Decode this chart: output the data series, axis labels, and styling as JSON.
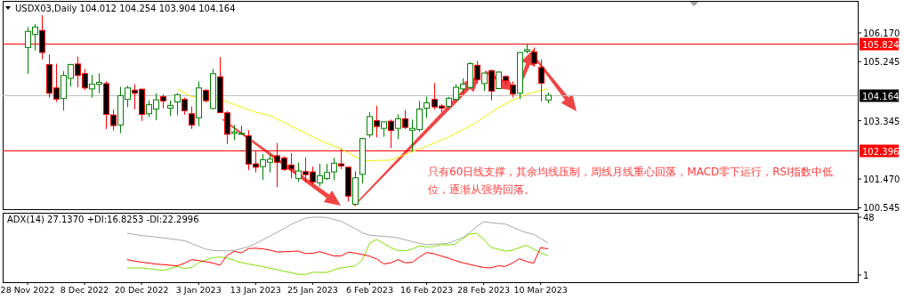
{
  "chart_data": [
    {
      "type": "candlestick",
      "title": "USDX03,Daily 104.012 104.254 103.904 104.164",
      "categories": [
        null,
        null,
        null,
        null,
        null,
        null,
        null,
        null,
        null,
        null,
        null,
        null,
        null,
        null,
        null,
        null,
        null,
        null,
        null,
        null,
        null,
        null,
        null,
        null,
        null,
        null,
        null,
        null,
        null,
        null,
        null,
        null,
        null,
        null,
        null,
        null,
        null,
        null,
        null,
        null,
        null,
        null,
        null,
        null,
        null,
        null,
        null,
        null,
        null,
        null,
        null,
        null,
        null,
        null,
        null,
        null,
        null,
        null,
        null,
        null,
        null,
        null,
        null,
        null,
        null,
        null,
        null,
        null,
        null,
        null,
        null,
        null,
        null,
        null,
        null,
        null,
        null,
        null,
        null,
        null,
        null,
        null,
        null,
        null,
        null,
        null,
        null,
        null,
        null,
        null,
        null,
        null,
        null,
        null,
        null,
        null,
        null,
        null,
        null,
        null,
        null,
        null,
        null,
        null,
        null,
        null,
        null,
        null,
        null,
        null,
        null,
        null,
        null,
        null,
        null,
        null,
        null,
        null,
        null,
        null
      ],
      "ohlc": [
        null,
        null,
        null,
        [
          105.7,
          106.36,
          104.85,
          106.22
        ],
        [
          106.12,
          106.45,
          105.6,
          106.36
        ],
        [
          106.25,
          106.74,
          105.32,
          105.54
        ],
        [
          105.15,
          105.48,
          104.09,
          104.23
        ],
        [
          104.4,
          105.18,
          103.95,
          104.04
        ],
        [
          104.06,
          104.94,
          103.67,
          104.8
        ],
        [
          104.71,
          105.18,
          104.44,
          105.15
        ],
        [
          105.17,
          105.41,
          104.42,
          104.8
        ],
        [
          104.86,
          105.01,
          104.33,
          104.4
        ],
        [
          104.37,
          104.82,
          104.09,
          104.52
        ],
        [
          104.52,
          104.87,
          104.23,
          104.58
        ],
        [
          104.54,
          104.61,
          103.08,
          103.55
        ],
        [
          103.53,
          103.71,
          103.03,
          103.19
        ],
        [
          103.21,
          104.44,
          102.95,
          104.15
        ],
        [
          104.03,
          104.47,
          103.78,
          104.4
        ],
        [
          104.33,
          104.52,
          103.71,
          104.23
        ],
        [
          104.36,
          104.38,
          103.34,
          103.55
        ],
        [
          103.57,
          104.0,
          103.46,
          103.86
        ],
        [
          103.72,
          104.23,
          103.36,
          104.02
        ],
        [
          104.12,
          104.19,
          103.74,
          103.98
        ],
        [
          103.75,
          104.0,
          103.5,
          103.84
        ],
        [
          103.95,
          104.23,
          103.52,
          104.18
        ],
        [
          104.03,
          104.09,
          103.54,
          103.67
        ],
        [
          103.57,
          103.81,
          103.08,
          103.21
        ],
        [
          103.44,
          104.61,
          103.17,
          104.4
        ],
        [
          104.32,
          104.37,
          103.93,
          103.99
        ],
        [
          103.74,
          105.01,
          103.71,
          104.86
        ],
        [
          104.76,
          105.39,
          103.59,
          103.61
        ],
        [
          103.6,
          103.65,
          102.6,
          102.91
        ],
        [
          102.94,
          103.21,
          102.72,
          102.99
        ],
        [
          102.92,
          103.19,
          102.91,
          102.94
        ],
        [
          102.86,
          103.04,
          101.76,
          101.95
        ],
        [
          101.96,
          102.39,
          101.68,
          101.85
        ],
        [
          101.87,
          102.27,
          101.44,
          102.09
        ],
        [
          102.01,
          102.27,
          101.68,
          102.11
        ],
        [
          102.22,
          102.63,
          101.21,
          102.01
        ],
        [
          102.15,
          102.2,
          101.73,
          101.78
        ],
        [
          101.92,
          102.3,
          101.49,
          101.79
        ],
        [
          101.49,
          102.0,
          101.38,
          101.73
        ],
        [
          101.71,
          102.17,
          101.35,
          101.61
        ],
        [
          101.7,
          101.87,
          101.3,
          101.37
        ],
        [
          101.35,
          101.96,
          101.23,
          101.58
        ],
        [
          101.49,
          101.96,
          101.44,
          101.68
        ],
        [
          101.7,
          102.15,
          101.43,
          101.98
        ],
        [
          101.96,
          102.44,
          101.79,
          101.89
        ],
        [
          101.85,
          101.87,
          100.75,
          100.92
        ],
        [
          100.66,
          101.72,
          100.62,
          101.51
        ],
        [
          101.62,
          102.8,
          101.33,
          102.77
        ],
        [
          102.89,
          103.62,
          102.8,
          103.48
        ],
        [
          103.35,
          103.83,
          102.81,
          103.16
        ],
        [
          103.1,
          103.33,
          102.83,
          103.31
        ],
        [
          103.33,
          103.38,
          102.47,
          103.03
        ],
        [
          103.1,
          103.55,
          102.75,
          103.41
        ],
        [
          103.41,
          103.69,
          103.08,
          103.13
        ],
        [
          103.04,
          103.38,
          102.36,
          103.1
        ],
        [
          103.06,
          103.98,
          103.0,
          103.72
        ],
        [
          103.75,
          104.12,
          103.43,
          103.92
        ],
        [
          104.03,
          104.56,
          103.71,
          103.79
        ],
        [
          103.82,
          103.88,
          103.62,
          103.75
        ],
        [
          103.81,
          104.11,
          103.76,
          104.07
        ],
        [
          104.03,
          104.52,
          104.0,
          104.42
        ],
        [
          104.37,
          104.71,
          104.23,
          104.52
        ],
        [
          104.42,
          105.23,
          104.38,
          105.18
        ],
        [
          105.13,
          105.27,
          104.54,
          104.66
        ],
        [
          104.54,
          104.89,
          104.3,
          104.88
        ],
        [
          104.96,
          104.99,
          104.0,
          104.3
        ],
        [
          104.38,
          104.94,
          104.36,
          104.91
        ],
        [
          104.77,
          104.8,
          104.47,
          104.63
        ],
        [
          104.49,
          104.61,
          104.09,
          104.2
        ],
        [
          104.23,
          105.56,
          104.04,
          105.54
        ],
        [
          105.58,
          105.82,
          105.51,
          105.63
        ],
        [
          105.56,
          105.7,
          105.08,
          105.18
        ],
        [
          105.06,
          105.32,
          103.97,
          104.55
        ],
        [
          104.012,
          104.254,
          103.904,
          104.164
        ],
        null,
        null,
        null,
        null,
        null,
        null,
        null,
        null,
        null,
        null,
        null,
        null,
        null,
        null,
        null,
        null,
        null,
        null,
        null,
        null,
        null,
        null,
        null,
        null,
        null,
        null,
        null,
        null,
        null,
        null,
        null,
        null,
        null,
        null,
        null,
        null,
        null,
        null,
        null,
        null,
        null,
        null,
        null
      ],
      "series": [
        {
          "type": "line",
          "color": "#f0f000",
          "values": [
            null,
            null,
            null,
            null,
            null,
            null,
            null,
            null,
            null,
            null,
            null,
            null,
            null,
            null,
            null,
            null,
            null,
            null,
            null,
            null,
            null,
            null,
            null,
            null,
            104.36,
            104.24,
            104.12,
            104.11,
            104.1,
            104.09,
            104.02,
            103.95,
            103.87,
            103.79,
            103.7,
            103.62,
            103.57,
            103.52,
            103.4,
            103.29,
            103.17,
            103.06,
            102.95,
            102.83,
            102.72,
            102.63,
            102.53,
            102.44,
            102.31,
            102.19,
            102.06,
            102.06,
            102.07,
            102.07,
            102.08,
            102.17,
            102.26,
            102.35,
            102.44,
            102.53,
            102.62,
            102.72,
            102.81,
            102.93,
            103.05,
            103.17,
            103.29,
            103.45,
            103.6,
            103.76,
            103.88,
            104.0,
            104.1,
            104.2,
            104.26,
            104.32,
            104.37,
            null,
            null,
            null,
            null,
            null,
            null,
            null,
            null,
            null,
            null,
            null,
            null,
            null,
            null,
            null,
            null,
            null,
            null,
            null,
            null,
            null,
            null,
            null,
            null,
            null,
            null,
            null,
            null,
            null,
            null,
            null,
            null,
            null,
            null,
            null,
            null,
            null,
            null,
            null,
            null,
            null,
            null,
            null
          ]
        }
      ],
      "ylim": [
        100.5,
        107.2
      ],
      "yticks": [
        {
          "value": 106.17,
          "label": "106.170"
        },
        {
          "value": 105.245,
          "label": "105.245"
        },
        {
          "value": 103.345,
          "label": "103.345"
        },
        {
          "value": 101.47,
          "label": "101.470"
        },
        {
          "value": 100.545,
          "label": "100.545"
        }
      ],
      "ref_lines": [
        {
          "axis": "y",
          "value": 105.824,
          "label": "105.824",
          "color": "#ff0000"
        },
        {
          "axis": "y",
          "value": 104.164,
          "label": "104.164",
          "color": "#c0c0c0"
        },
        {
          "axis": "y",
          "value": 102.396,
          "label": "102.396",
          "color": "#ff0000"
        }
      ],
      "annotations": [
        "只有60日线支撑，其余均线压制，周线月线重心回落，MACD零下运行，RSI指数中低位，逐渐从强势回落。"
      ]
    },
    {
      "type": "line",
      "title": "ADX(14) 27.1370 +DI:16.8253 -DI:22.2996",
      "categories": [
        null,
        null,
        null,
        "28 Nov 2022",
        null,
        null,
        null,
        null,
        null,
        null,
        null,
        "8 Dec 2022",
        null,
        null,
        null,
        null,
        null,
        null,
        null,
        "20 Dec 2022",
        null,
        null,
        null,
        null,
        null,
        null,
        null,
        "3 Jan 2023",
        null,
        null,
        null,
        null,
        null,
        null,
        null,
        "13 Jan 2023",
        null,
        null,
        null,
        null,
        null,
        null,
        null,
        "25 Jan 2023",
        null,
        null,
        null,
        null,
        null,
        null,
        null,
        "6 Feb 2023",
        null,
        null,
        null,
        null,
        null,
        null,
        null,
        "16 Feb 2023",
        null,
        null,
        null,
        null,
        null,
        null,
        null,
        "28 Feb 2023",
        null,
        null,
        null,
        null,
        null,
        null,
        null,
        "10 Mar 2023",
        null,
        null,
        null,
        null,
        null,
        null,
        null,
        null,
        null,
        null,
        null,
        null,
        null,
        null,
        null,
        null,
        null,
        null,
        null,
        null,
        null,
        null,
        null,
        null,
        null,
        null,
        null,
        null,
        null,
        null,
        null,
        null,
        null,
        null,
        null,
        null,
        null,
        null,
        null,
        null,
        null,
        null,
        null,
        null
      ],
      "series": [
        {
          "color": "#a8a8a8",
          "values": [
            null,
            null,
            null,
            null,
            null,
            null,
            null,
            null,
            null,
            null,
            null,
            null,
            null,
            null,
            null,
            null,
            null,
            35.0,
            34.0,
            33.1,
            32.5,
            31.8,
            31.2,
            30.4,
            29.7,
            28.9,
            26.6,
            24.4,
            22.1,
            20.9,
            20.8,
            20.6,
            20.9,
            22.5,
            24.0,
            26.6,
            29.5,
            32.5,
            35.7,
            38.9,
            42.1,
            44.7,
            47.2,
            48.0,
            48.0,
            47.7,
            46.1,
            44.6,
            41.7,
            38.5,
            35.2,
            33.4,
            32.9,
            32.4,
            32.0,
            31.1,
            29.6,
            28.2,
            26.7,
            25.8,
            26.1,
            26.3,
            26.8,
            29.0,
            31.3,
            35.2,
            40.3,
            44.2,
            43.6,
            43.0,
            42.5,
            40.1,
            37.5,
            35.4,
            34.2,
            30.8,
            27.1,
            null,
            null,
            null,
            null,
            null,
            null,
            null,
            null,
            null,
            null,
            null,
            null,
            null,
            null,
            null,
            null,
            null,
            null,
            null,
            null,
            null,
            null,
            null,
            null,
            null,
            null,
            null,
            null,
            null,
            null,
            null,
            null,
            null,
            null,
            null,
            null,
            null,
            null,
            null,
            null,
            null,
            null,
            null
          ]
        },
        {
          "color": "#7fe000",
          "values": [
            null,
            null,
            null,
            null,
            null,
            null,
            null,
            null,
            null,
            null,
            null,
            null,
            null,
            null,
            null,
            null,
            null,
            6.6,
            6.8,
            6.8,
            6.2,
            5.5,
            4.8,
            6.4,
            8.0,
            6.3,
            7.1,
            11.0,
            13.3,
            15.2,
            15.6,
            14.9,
            12.9,
            11.1,
            10.0,
            8.9,
            7.8,
            6.6,
            5.4,
            4.1,
            2.9,
            1.6,
            1.5,
            3.3,
            3.1,
            3.2,
            5.1,
            6.9,
            7.6,
            8.4,
            13.4,
            27.0,
            29.9,
            26.6,
            23.1,
            20.9,
            20.6,
            22.2,
            24.7,
            23.8,
            24.2,
            25.7,
            25.4,
            26.1,
            30.2,
            34.3,
            34.9,
            30.2,
            23.5,
            22.1,
            20.4,
            21.1,
            23.2,
            25.2,
            22.1,
            19.2,
            16.8,
            null,
            null,
            null,
            null,
            null,
            null,
            null,
            null,
            null,
            null,
            null,
            null,
            null,
            null,
            null,
            null,
            null,
            null,
            null,
            null,
            null,
            null,
            null,
            null,
            null,
            null,
            null,
            null,
            null,
            null,
            null,
            null,
            null,
            null,
            null,
            null,
            null,
            null,
            null,
            null,
            null,
            null,
            null
          ]
        },
        {
          "color": "#ff0000",
          "values": [
            null,
            null,
            null,
            null,
            null,
            null,
            null,
            null,
            null,
            null,
            null,
            null,
            null,
            null,
            null,
            null,
            null,
            13.5,
            12.3,
            11.5,
            10.7,
            9.9,
            9.5,
            9.0,
            8.5,
            10.6,
            13.5,
            12.8,
            11.8,
            10.8,
            9.0,
            17.0,
            20.3,
            19.0,
            22.5,
            22.8,
            22.3,
            21.3,
            19.8,
            19.9,
            20.2,
            20.5,
            18.4,
            18.7,
            20.0,
            18.3,
            16.5,
            16.5,
            19.6,
            18.8,
            17.7,
            16.3,
            14.1,
            10.0,
            11.0,
            13.5,
            11.0,
            11.4,
            15.7,
            19.3,
            18.4,
            16.5,
            14.9,
            12.8,
            11.1,
            9.7,
            8.4,
            7.1,
            6.8,
            8.5,
            8.0,
            10.6,
            14.2,
            12.1,
            10.6,
            23.3,
            22.3,
            null,
            null,
            null,
            null,
            null,
            null,
            null,
            null,
            null,
            null,
            null,
            null,
            null,
            null,
            null,
            null,
            null,
            null,
            null,
            null,
            null,
            null,
            null,
            null,
            null,
            null,
            null,
            null,
            null,
            null,
            null,
            null,
            null,
            null,
            null,
            null,
            null,
            null,
            null,
            null,
            null,
            null,
            null
          ]
        }
      ],
      "ylim": [
        -4.8,
        51.6
      ],
      "yticks": [
        48,
        1
      ]
    }
  ]
}
